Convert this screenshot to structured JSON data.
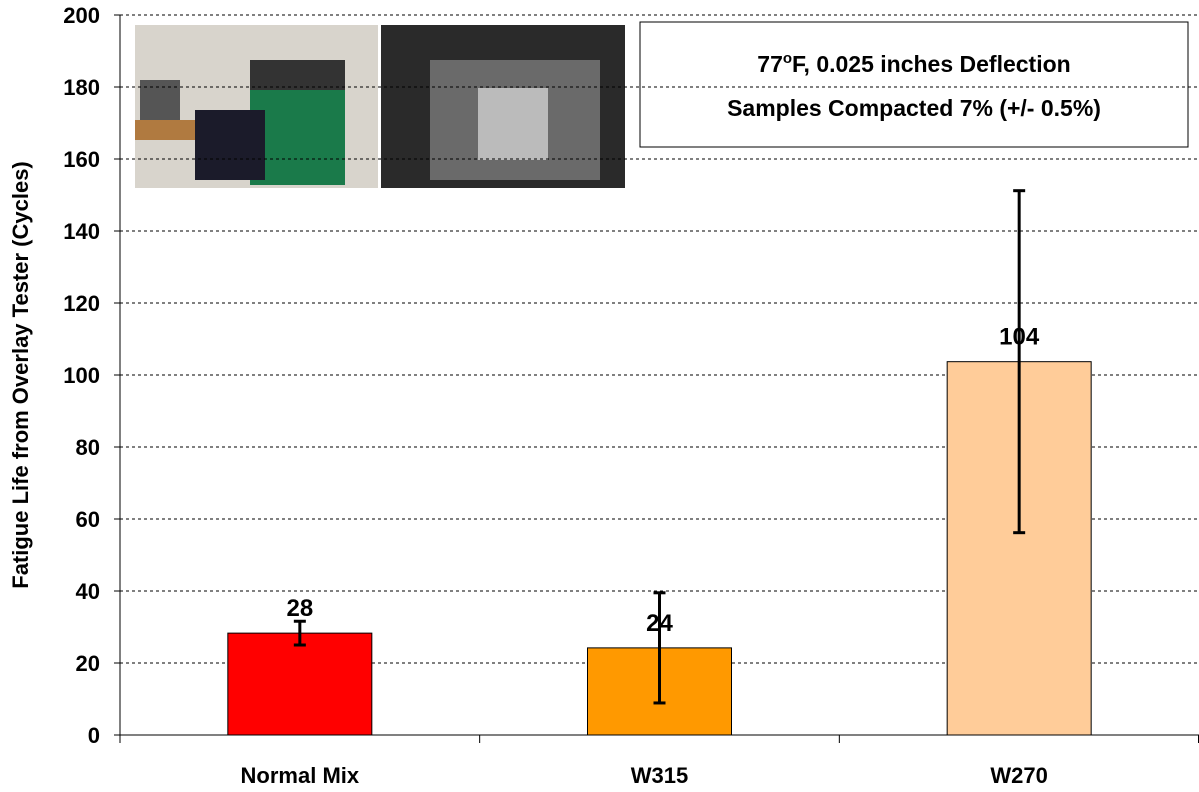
{
  "chart_data": {
    "type": "bar",
    "y_label": "Fatigue Life from Overlay Tester (Cycles)",
    "annotation": {
      "line1": [
        "77",
        "o",
        "F, 0.025 inches Deflection"
      ],
      "line2": "Samples Compacted 7% (+/- 0.5%)"
    },
    "categories": [
      "Normal Mix",
      "W315",
      "W270"
    ],
    "values": [
      28.3,
      24.2,
      103.7
    ],
    "value_labels": [
      "28",
      "24",
      "104"
    ],
    "errors": [
      3.3,
      15.3,
      47.5
    ],
    "colors": [
      "#ff0000",
      "#ff9900",
      "#ffcc99"
    ],
    "ylim": [
      0,
      200
    ],
    "yticks": [
      0,
      20,
      40,
      60,
      80,
      100,
      120,
      140,
      160,
      180,
      200
    ],
    "grid": true
  }
}
